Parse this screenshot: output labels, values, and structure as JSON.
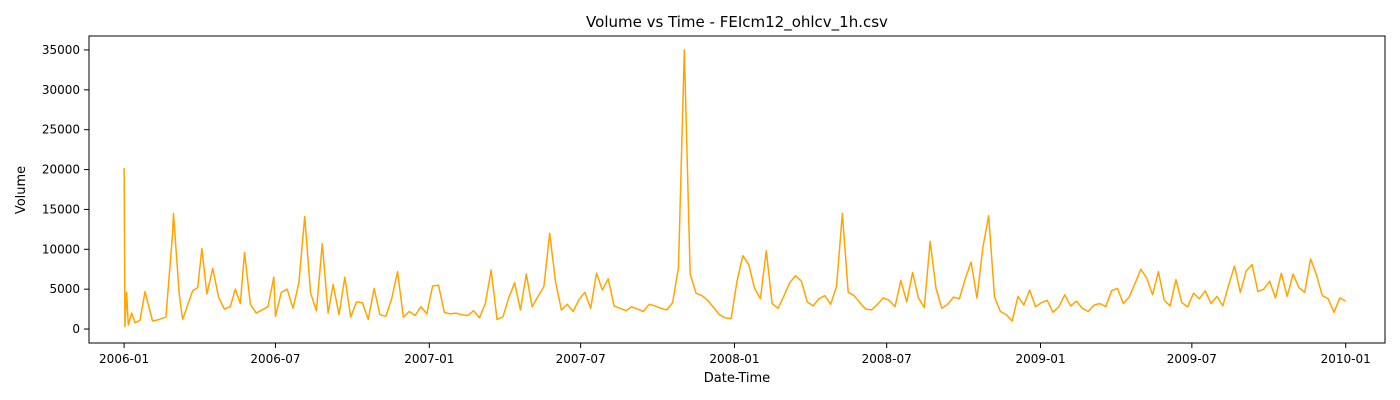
{
  "chart_data": {
    "type": "line",
    "title": "Volume vs Time - FEIcm12_ohlcv_1h.csv",
    "xlabel": "Date-Time",
    "ylabel": "Volume",
    "xlim": [
      "2005-11-20",
      "2010-02-17"
    ],
    "ylim": [
      -1750,
      36750
    ],
    "grid": false,
    "line_color": "#ffa500",
    "x_ticks": [
      {
        "date": "2006-01-01",
        "label": "2006-01"
      },
      {
        "date": "2006-07-01",
        "label": "2006-07"
      },
      {
        "date": "2007-01-01",
        "label": "2007-01"
      },
      {
        "date": "2007-07-01",
        "label": "2007-07"
      },
      {
        "date": "2008-01-01",
        "label": "2008-01"
      },
      {
        "date": "2008-07-01",
        "label": "2008-07"
      },
      {
        "date": "2009-01-01",
        "label": "2009-01"
      },
      {
        "date": "2009-07-01",
        "label": "2009-07"
      },
      {
        "date": "2010-01-01",
        "label": "2010-01"
      }
    ],
    "y_ticks": [
      {
        "value": 0,
        "label": "0"
      },
      {
        "value": 5000,
        "label": "5000"
      },
      {
        "value": 10000,
        "label": "10000"
      },
      {
        "value": 15000,
        "label": "15000"
      },
      {
        "value": 20000,
        "label": "20000"
      },
      {
        "value": 25000,
        "label": "25000"
      },
      {
        "value": 30000,
        "label": "30000"
      },
      {
        "value": 35000,
        "label": "35000"
      }
    ],
    "series": [
      {
        "x": [
          "2006-01-01",
          "2006-01-02",
          "2006-01-04",
          "2006-01-06",
          "2006-01-10",
          "2006-01-14",
          "2006-01-20",
          "2006-01-26",
          "2006-02-04",
          "2006-02-12",
          "2006-02-20",
          "2006-02-28",
          "2006-03-01",
          "2006-03-08",
          "2006-03-12",
          "2006-03-16",
          "2006-03-24",
          "2006-03-30",
          "2006-04-04",
          "2006-04-10",
          "2006-04-17",
          "2006-04-24",
          "2006-05-01",
          "2006-05-08",
          "2006-05-14",
          "2006-05-20",
          "2006-05-25",
          "2006-06-01",
          "2006-06-08",
          "2006-06-15",
          "2006-06-22",
          "2006-06-29",
          "2006-07-01",
          "2006-07-08",
          "2006-07-15",
          "2006-07-22",
          "2006-07-29",
          "2006-08-05",
          "2006-08-12",
          "2006-08-19",
          "2006-08-26",
          "2006-09-02",
          "2006-09-08",
          "2006-09-15",
          "2006-09-22",
          "2006-09-29",
          "2006-10-06",
          "2006-10-13",
          "2006-10-20",
          "2006-10-27",
          "2006-11-03",
          "2006-11-10",
          "2006-11-17",
          "2006-11-24",
          "2006-12-01",
          "2006-12-08",
          "2006-12-15",
          "2006-12-22",
          "2006-12-29",
          "2007-01-05",
          "2007-01-12",
          "2007-01-19",
          "2007-01-26",
          "2007-02-02",
          "2007-02-09",
          "2007-02-16",
          "2007-02-23",
          "2007-03-02",
          "2007-03-09",
          "2007-03-16",
          "2007-03-23",
          "2007-03-30",
          "2007-04-06",
          "2007-04-13",
          "2007-04-20",
          "2007-04-27",
          "2007-05-04",
          "2007-05-11",
          "2007-05-18",
          "2007-05-25",
          "2007-06-01",
          "2007-06-08",
          "2007-06-15",
          "2007-06-22",
          "2007-06-29",
          "2007-07-06",
          "2007-07-13",
          "2007-07-20",
          "2007-07-27",
          "2007-08-03",
          "2007-08-10",
          "2007-08-17",
          "2007-08-24",
          "2007-08-31",
          "2007-09-07",
          "2007-09-14",
          "2007-09-21",
          "2007-09-28",
          "2007-10-05",
          "2007-10-12",
          "2007-10-19",
          "2007-10-26",
          "2007-11-02",
          "2007-11-09",
          "2007-11-16",
          "2007-11-23",
          "2007-11-30",
          "2007-12-07",
          "2007-12-14",
          "2007-12-21",
          "2007-12-28",
          "2008-01-04",
          "2008-01-11",
          "2008-01-18",
          "2008-01-25",
          "2008-02-01",
          "2008-02-08",
          "2008-02-15",
          "2008-02-22",
          "2008-02-29",
          "2008-03-07",
          "2008-03-14",
          "2008-03-21",
          "2008-03-28",
          "2008-04-04",
          "2008-04-11",
          "2008-04-18",
          "2008-04-25",
          "2008-05-02",
          "2008-05-09",
          "2008-05-16",
          "2008-05-23",
          "2008-05-30",
          "2008-06-06",
          "2008-06-13",
          "2008-06-20",
          "2008-06-27",
          "2008-07-04",
          "2008-07-11",
          "2008-07-18",
          "2008-07-25",
          "2008-08-01",
          "2008-08-08",
          "2008-08-15",
          "2008-08-22",
          "2008-08-29",
          "2008-09-05",
          "2008-09-12",
          "2008-09-19",
          "2008-09-26",
          "2008-10-03",
          "2008-10-10",
          "2008-10-17",
          "2008-10-24",
          "2008-10-31",
          "2008-11-07",
          "2008-11-14",
          "2008-11-21",
          "2008-11-28",
          "2008-12-05",
          "2008-12-12",
          "2008-12-19",
          "2008-12-26",
          "2009-01-02",
          "2009-01-09",
          "2009-01-16",
          "2009-01-23",
          "2009-01-30",
          "2009-02-06",
          "2009-02-13",
          "2009-02-20",
          "2009-02-27",
          "2009-03-06",
          "2009-03-13",
          "2009-03-20",
          "2009-03-27",
          "2009-04-03",
          "2009-04-10",
          "2009-04-17",
          "2009-04-24",
          "2009-05-01",
          "2009-05-08",
          "2009-05-15",
          "2009-05-22",
          "2009-05-29",
          "2009-06-05",
          "2009-06-12",
          "2009-06-19",
          "2009-06-26",
          "2009-07-03",
          "2009-07-10",
          "2009-07-17",
          "2009-07-24",
          "2009-07-31",
          "2009-08-07",
          "2009-08-14",
          "2009-08-21",
          "2009-08-28",
          "2009-09-04",
          "2009-09-11",
          "2009-09-18",
          "2009-09-25",
          "2009-10-02",
          "2009-10-09",
          "2009-10-16",
          "2009-10-23",
          "2009-10-30",
          "2009-11-06",
          "2009-11-13",
          "2009-11-20",
          "2009-11-27",
          "2009-12-04",
          "2009-12-11",
          "2009-12-18",
          "2009-12-25",
          "2010-01-01"
        ],
        "values": [
          20200,
          300,
          4600,
          500,
          2000,
          800,
          1100,
          4700,
          1000,
          1200,
          1500,
          12000,
          14500,
          4300,
          1200,
          2400,
          4800,
          5200,
          10100,
          4400,
          7600,
          4000,
          2500,
          2800,
          5000,
          3200,
          9600,
          3100,
          2000,
          2400,
          2800,
          6500,
          1600,
          4600,
          5000,
          2600,
          5800,
          14100,
          4500,
          2300,
          10700,
          2000,
          5600,
          1800,
          6500,
          1500,
          3400,
          3300,
          1200,
          5100,
          1800,
          1600,
          3800,
          7200,
          1500,
          2200,
          1700,
          2800,
          1900,
          5400,
          5500,
          2100,
          1900,
          2000,
          1800,
          1700,
          2300,
          1400,
          3200,
          7400,
          1200,
          1500,
          3900,
          5800,
          2400,
          6900,
          2800,
          4100,
          5300,
          12000,
          5900,
          2400,
          3100,
          2200,
          3700,
          4600,
          2600,
          7000,
          4900,
          6300,
          2900,
          2600,
          2300,
          2800,
          2500,
          2200,
          3100,
          2900,
          2600,
          2400,
          3300,
          7700,
          35000,
          6900,
          4500,
          4200,
          3600,
          2700,
          1800,
          1400,
          1300,
          6000,
          9200,
          8100,
          5100,
          3800,
          9800,
          3200,
          2600,
          4100,
          5800,
          6700,
          6000,
          3400,
          2900,
          3800,
          4200,
          3100,
          5300,
          14500,
          4600,
          4200,
          3300,
          2500,
          2400,
          3100,
          3900,
          3600,
          2800,
          6100,
          3400,
          7100,
          3900,
          2700,
          11000,
          5100,
          2600,
          3100,
          4000,
          3800,
          6300,
          8400,
          3900,
          10200,
          14200,
          4000,
          2200,
          1800,
          1000,
          4100,
          3000,
          4900,
          2800,
          3300,
          3600,
          2100,
          2800,
          4300,
          2900,
          3500,
          2600,
          2200,
          3000,
          3200,
          2800,
          4800,
          5100,
          3200,
          4000,
          5700,
          7500,
          6400,
          4300,
          7200,
          3600,
          2900,
          6200,
          3300,
          2800,
          4500,
          3800,
          4800,
          3200,
          4100,
          2900,
          5500,
          7900,
          4600,
          7300,
          8100,
          4700,
          5000,
          6000,
          3900,
          7000,
          4100,
          6900,
          5200,
          4600,
          8800,
          6800,
          4200,
          3800,
          2100,
          3900,
          3500
        ]
      }
    ]
  }
}
